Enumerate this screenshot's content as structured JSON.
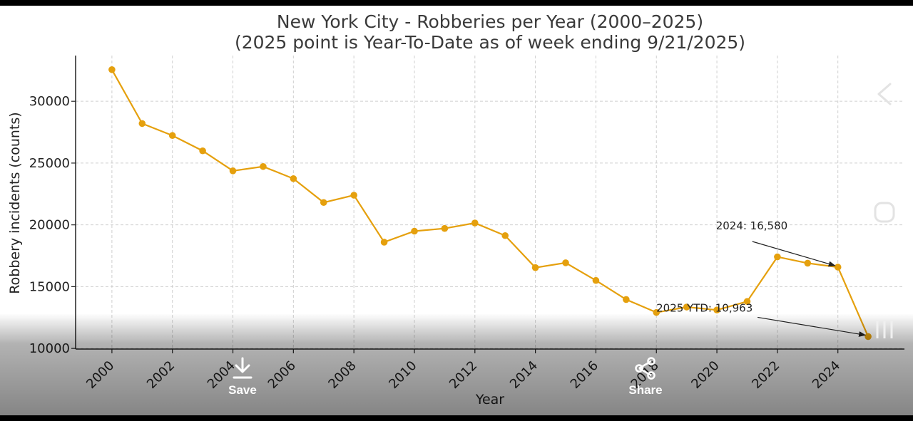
{
  "chart_data": {
    "type": "line",
    "title": "New York City - Robberies per Year (2000–2025)",
    "subtitle": "(2025 point is Year-To-Date as of week ending 9/21/2025)",
    "xlabel": "Year",
    "ylabel": "Robbery incidents (counts)",
    "xlim": [
      1998.8,
      2026.2
    ],
    "ylim": [
      9950,
      33700
    ],
    "x_ticks": [
      2000,
      2002,
      2004,
      2006,
      2008,
      2010,
      2012,
      2014,
      2016,
      2018,
      2020,
      2022,
      2024
    ],
    "x_tick_labels": [
      "2000",
      "2002",
      "2004",
      "2006",
      "2008",
      "2010",
      "2012",
      "2014",
      "2016",
      "2018",
      "2020",
      "2022",
      "2024"
    ],
    "y_ticks": [
      10000,
      15000,
      20000,
      25000,
      30000
    ],
    "y_tick_labels": [
      "10000",
      "15000",
      "20000",
      "25000",
      "30000"
    ],
    "grid": true,
    "color": "#E5A00D",
    "x": [
      2000,
      2001,
      2002,
      2003,
      2004,
      2005,
      2006,
      2007,
      2008,
      2009,
      2010,
      2011,
      2012,
      2013,
      2014,
      2015,
      2016,
      2017,
      2018,
      2019,
      2020,
      2021,
      2022,
      2023,
      2024,
      2025
    ],
    "y": [
      32560,
      28200,
      27230,
      25990,
      24370,
      24720,
      23740,
      21810,
      22400,
      18600,
      19490,
      19710,
      20150,
      19130,
      16540,
      16930,
      15500,
      13960,
      12910,
      13350,
      13110,
      13800,
      17410,
      16900,
      16580,
      10963
    ],
    "annotations": [
      {
        "text": "2024: 16,580",
        "x": 2024,
        "y": 16580
      },
      {
        "text": "2025 YTD: 10,963",
        "x": 2025,
        "y": 10963
      }
    ]
  },
  "overlay": {
    "save_label": "Save",
    "share_label": "Share",
    "save_icon": "download-icon",
    "share_icon": "share-icon",
    "nav_icons": [
      "back-icon",
      "home-icon",
      "recents-icon"
    ]
  }
}
